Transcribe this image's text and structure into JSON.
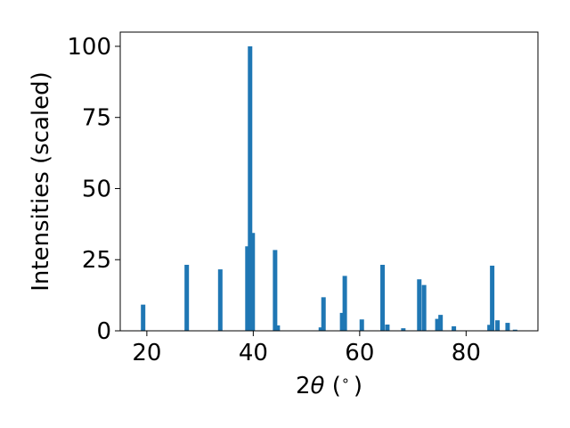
{
  "chart_data": {
    "type": "bar",
    "xlabel_prefix": "2",
    "xlabel_symbol": "θ",
    "xlabel_suffix": " (",
    "xlabel_degree": "∘",
    "xlabel_close": ")",
    "ylabel": "Intensities (scaled)",
    "xlim": [
      15,
      93.5
    ],
    "ylim": [
      0,
      105
    ],
    "xticks": [
      20,
      40,
      60,
      80
    ],
    "yticks": [
      0,
      25,
      50,
      75,
      100
    ],
    "grid": false,
    "bar_color": "#1f77b4",
    "points": [
      {
        "x": 19.3,
        "y": 9.2
      },
      {
        "x": 27.5,
        "y": 23.2
      },
      {
        "x": 33.8,
        "y": 21.6
      },
      {
        "x": 38.9,
        "y": 29.7
      },
      {
        "x": 39.4,
        "y": 100
      },
      {
        "x": 39.9,
        "y": 34.4
      },
      {
        "x": 44.1,
        "y": 28.4
      },
      {
        "x": 44.6,
        "y": 1.9
      },
      {
        "x": 52.7,
        "y": 1.2
      },
      {
        "x": 53.2,
        "y": 11.8
      },
      {
        "x": 56.7,
        "y": 6.3
      },
      {
        "x": 57.2,
        "y": 19.3
      },
      {
        "x": 60.4,
        "y": 4.0
      },
      {
        "x": 64.3,
        "y": 23.2
      },
      {
        "x": 65.2,
        "y": 2.2
      },
      {
        "x": 68.2,
        "y": 0.9
      },
      {
        "x": 71.2,
        "y": 18.1
      },
      {
        "x": 72.1,
        "y": 16.1
      },
      {
        "x": 74.6,
        "y": 4.2
      },
      {
        "x": 75.2,
        "y": 5.6
      },
      {
        "x": 77.7,
        "y": 1.6
      },
      {
        "x": 84.4,
        "y": 2.1
      },
      {
        "x": 84.9,
        "y": 22.9
      },
      {
        "x": 85.9,
        "y": 3.7
      },
      {
        "x": 87.8,
        "y": 2.8
      },
      {
        "x": 89.2,
        "y": 0.4
      }
    ]
  }
}
